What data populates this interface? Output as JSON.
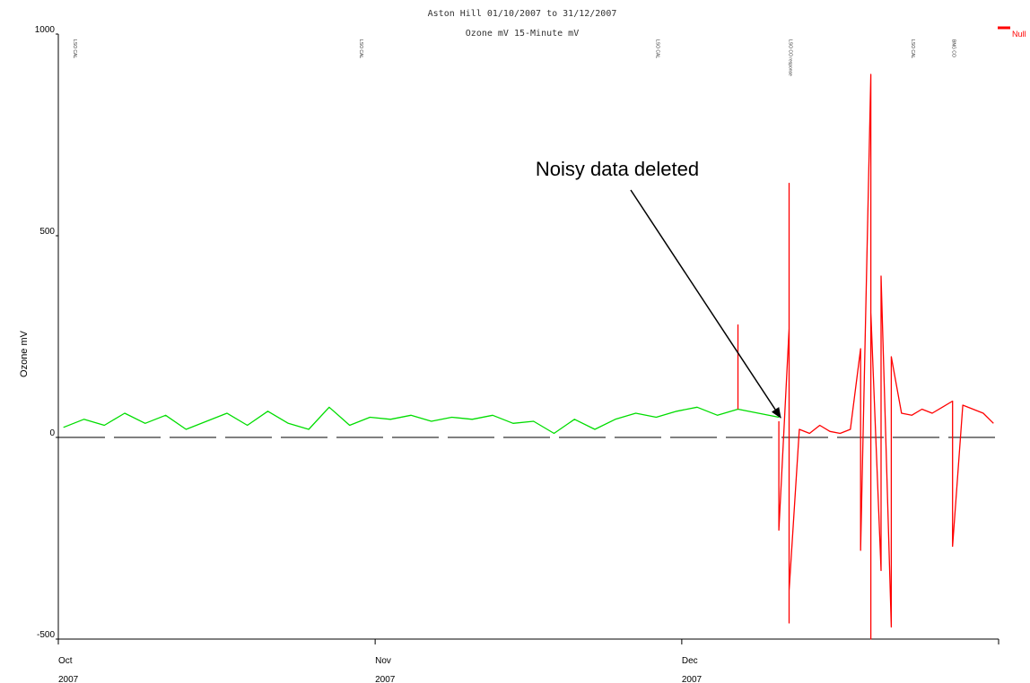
{
  "chart_data": {
    "type": "line",
    "title": "Aston Hill 01/10/2007 to 31/12/2007",
    "subtitle": "Ozone mV 15-Minute mV",
    "ylabel": "Ozone mV",
    "xlabel": "",
    "ylim": [
      -500,
      1000
    ],
    "yticks": [
      -500,
      0,
      500,
      1000
    ],
    "xlim": [
      "2007-10-01",
      "2007-12-31"
    ],
    "xticks": [
      {
        "date": "2007-10-01",
        "month": "Oct",
        "year": "2007"
      },
      {
        "date": "2007-11-01",
        "month": "Nov",
        "year": "2007"
      },
      {
        "date": "2007-12-01",
        "month": "Dec",
        "year": "2007"
      }
    ],
    "grid": false,
    "legend": {
      "placement": "top-right",
      "entries": [
        {
          "name": "Null",
          "color": "#ff0000"
        }
      ]
    },
    "zero_line": {
      "value": 0,
      "style": "dashed",
      "color": "#000000"
    },
    "event_markers": [
      {
        "date": "2007-10-02",
        "label": "LSO CAL"
      },
      {
        "date": "2007-10-30",
        "label": "LSO CAL"
      },
      {
        "date": "2007-11-28",
        "label": "LSO CAL"
      },
      {
        "date": "2007-12-11",
        "label": "LSO CO response"
      },
      {
        "date": "2007-12-23",
        "label": "LSO CAL"
      },
      {
        "date": "2007-12-27",
        "label": "BNG CO"
      }
    ],
    "series": [
      {
        "color": "#00dd00",
        "x": [
          "2007-10-01",
          "2007-10-03",
          "2007-10-05",
          "2007-10-07",
          "2007-10-09",
          "2007-10-11",
          "2007-10-13",
          "2007-10-15",
          "2007-10-17",
          "2007-10-19",
          "2007-10-21",
          "2007-10-23",
          "2007-10-25",
          "2007-10-27",
          "2007-10-29",
          "2007-10-31",
          "2007-11-02",
          "2007-11-04",
          "2007-11-06",
          "2007-11-08",
          "2007-11-10",
          "2007-11-12",
          "2007-11-14",
          "2007-11-16",
          "2007-11-18",
          "2007-11-20",
          "2007-11-22",
          "2007-11-24",
          "2007-11-26",
          "2007-11-28",
          "2007-11-30",
          "2007-12-02",
          "2007-12-04",
          "2007-12-06",
          "2007-12-08",
          "2007-12-10"
        ],
        "y": [
          25,
          45,
          30,
          60,
          35,
          55,
          20,
          40,
          60,
          30,
          65,
          35,
          20,
          75,
          30,
          50,
          45,
          55,
          40,
          50,
          45,
          55,
          35,
          40,
          10,
          45,
          20,
          45,
          60,
          50,
          65,
          75,
          55,
          70,
          60,
          50
        ]
      },
      {
        "name": "Null",
        "color": "#ff0000",
        "x": [
          "2007-12-10",
          "2007-12-10",
          "2007-12-11",
          "2007-12-11",
          "2007-12-11",
          "2007-12-11",
          "2007-12-12",
          "2007-12-13",
          "2007-12-14",
          "2007-12-15",
          "2007-12-16",
          "2007-12-17",
          "2007-12-18",
          "2007-12-18",
          "2007-12-19",
          "2007-12-19",
          "2007-12-19",
          "2007-12-20",
          "2007-12-20",
          "2007-12-21",
          "2007-12-21",
          "2007-12-22",
          "2007-12-23",
          "2007-12-24",
          "2007-12-25",
          "2007-12-26",
          "2007-12-27",
          "2007-12-27",
          "2007-12-28",
          "2007-12-29",
          "2007-12-30",
          "2007-12-31"
        ],
        "y": [
          40,
          -230,
          270,
          -460,
          630,
          -380,
          20,
          10,
          30,
          15,
          10,
          20,
          220,
          -280,
          900,
          -500,
          310,
          -330,
          400,
          -470,
          200,
          60,
          55,
          70,
          60,
          75,
          90,
          -270,
          80,
          70,
          60,
          35
        ]
      },
      {
        "color": "#ff0000",
        "x": [
          "2007-12-06",
          "2007-12-06"
        ],
        "y": [
          70,
          280
        ]
      }
    ],
    "annotations": [
      {
        "text": "Noisy data deleted",
        "arrow_to": {
          "date": "2007-12-10",
          "value": 40
        }
      }
    ]
  }
}
